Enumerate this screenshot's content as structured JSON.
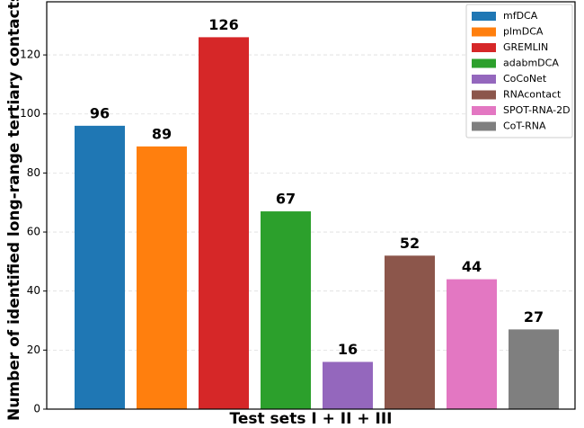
{
  "chart_data": {
    "type": "bar",
    "y_label": "Number of identified long-range tertiary contacts",
    "x_label": "Test sets I + II + III",
    "series": [
      {
        "name": "mfDCA",
        "color": "#1f77b4",
        "values": [
          96
        ]
      },
      {
        "name": "plmDCA",
        "color": "#ff7f0e",
        "values": [
          89
        ]
      },
      {
        "name": "GREMLIN",
        "color": "#d62728",
        "values": [
          126
        ]
      },
      {
        "name": "adabmDCA",
        "color": "#2ca02c",
        "values": [
          67
        ]
      },
      {
        "name": "CoCoNet",
        "color": "#9467bd",
        "values": [
          16
        ]
      },
      {
        "name": "RNAcontact",
        "color": "#8c564b",
        "values": [
          52
        ]
      },
      {
        "name": "SPOT-RNA-2D",
        "color": "#e377c2",
        "values": [
          44
        ]
      },
      {
        "name": "CoT-RNA",
        "color": "#7f7f7f",
        "values": [
          27
        ]
      }
    ],
    "ylim": [
      0,
      138
    ],
    "yticks": [
      0,
      20,
      40,
      60,
      80,
      100,
      120
    ],
    "grid": true,
    "legend": "upper right"
  }
}
